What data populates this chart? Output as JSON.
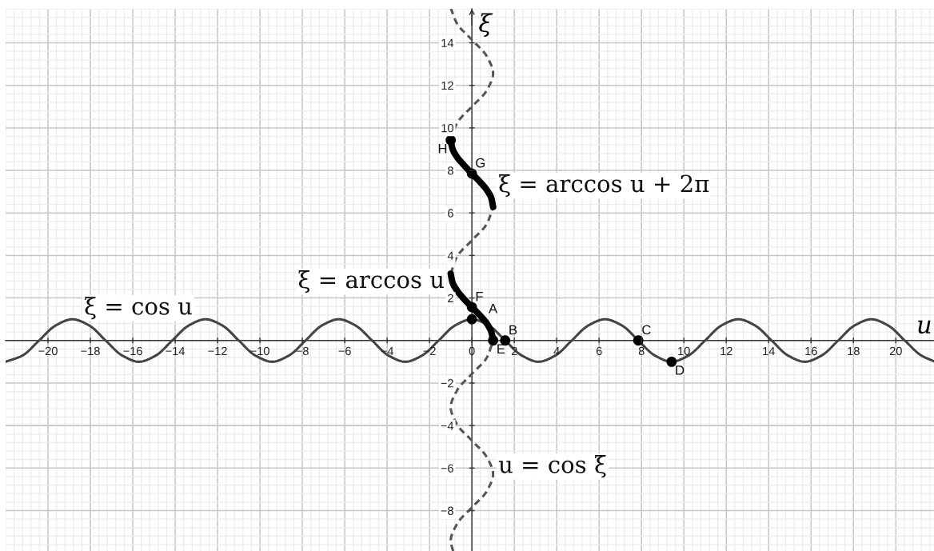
{
  "chart_data": {
    "type": "line",
    "xlabel": "u",
    "ylabel": "ξ",
    "xlim": [
      -22,
      21.8
    ],
    "ylim": [
      -9.9,
      15.6
    ],
    "xticks": [
      {
        "value": -20,
        "label": "−20"
      },
      {
        "value": -18,
        "label": "−18"
      },
      {
        "value": -16,
        "label": "−16"
      },
      {
        "value": -14,
        "label": "−14"
      },
      {
        "value": -12,
        "label": "−12"
      },
      {
        "value": -10,
        "label": "−10"
      },
      {
        "value": -8,
        "label": "−8"
      },
      {
        "value": -6,
        "label": "−6"
      },
      {
        "value": -4,
        "label": "−4"
      },
      {
        "value": -2,
        "label": "−2"
      },
      {
        "value": 0,
        "label": "0"
      },
      2,
      4,
      6,
      8,
      10,
      12,
      14,
      16,
      18,
      20
    ],
    "yticks": [
      {
        "value": -8,
        "label": "−8"
      },
      {
        "value": -6,
        "label": "−6"
      },
      {
        "value": -4,
        "label": "−4"
      },
      {
        "value": -2,
        "label": "−2"
      },
      2,
      4,
      6,
      8,
      10,
      12,
      14
    ],
    "grid": true,
    "series": [
      {
        "color": "#444444",
        "x": [
          -21.99,
          -21.21,
          -20.42,
          -19.63,
          -18.85,
          -18.06,
          -17.28,
          -16.49,
          -15.71,
          -14.92,
          -14.14,
          -13.35,
          -12.57,
          -11.78,
          -11.0,
          -10.21,
          -9.42,
          -8.64,
          -7.85,
          -7.07,
          -6.28,
          -5.5,
          -4.71,
          -3.93,
          -3.14,
          -2.36,
          -1.57,
          -0.79,
          0,
          0.79,
          1.57,
          2.36,
          3.14,
          3.93,
          4.71,
          5.5,
          6.28,
          7.07,
          7.85,
          8.64,
          9.42,
          10.21,
          11.0,
          11.78,
          12.57,
          13.35,
          14.14,
          14.92,
          15.71,
          16.49,
          17.28,
          18.06,
          18.85,
          19.63,
          20.42,
          21.21,
          21.8
        ],
        "values": [
          -1,
          -0.71,
          0,
          0.71,
          1,
          0.71,
          0,
          -0.71,
          -1,
          -0.71,
          0,
          0.71,
          1,
          0.71,
          0,
          -0.71,
          -1,
          -0.71,
          0,
          0.71,
          1,
          0.71,
          0,
          -0.71,
          -1,
          -0.71,
          0,
          0.71,
          1,
          0.71,
          0,
          -0.71,
          -1,
          -0.71,
          0,
          0.71,
          1,
          0.71,
          0,
          -0.71,
          -1,
          -0.71,
          0,
          0.71,
          1,
          0.71,
          0,
          -0.71,
          -1,
          -0.71,
          0,
          0.71,
          1,
          0.71,
          0,
          -0.71,
          -0.98
        ]
      },
      {
        "color": "#555555",
        "line_style": "dashed",
        "x": [
          -0.89,
          -1,
          -0.71,
          0,
          0.71,
          1,
          0.71,
          0,
          -0.71,
          -1,
          -0.71,
          0,
          0.71,
          1,
          null,
          -1,
          -0.71,
          0,
          0.71,
          1,
          null,
          -1,
          -0.71,
          0,
          0.71,
          1,
          0.71,
          0,
          -0.71,
          -0.99
        ],
        "values": [
          -9.9,
          -9.42,
          -8.64,
          -7.85,
          -7.07,
          -6.28,
          -5.5,
          -4.71,
          -3.93,
          -3.14,
          -2.36,
          -1.57,
          -0.79,
          0,
          null,
          3.14,
          3.93,
          4.71,
          5.5,
          6.28,
          null,
          9.42,
          10.21,
          11.0,
          11.78,
          12.57,
          13.35,
          14.14,
          14.92,
          15.6
        ]
      },
      {
        "color": "#000000",
        "x": [
          -1,
          -0.92,
          -0.71,
          -0.38,
          0,
          0.38,
          0.71,
          0.92,
          1
        ],
        "values": [
          3.14,
          2.75,
          2.36,
          1.96,
          1.57,
          1.18,
          0.79,
          0.39,
          0
        ]
      },
      {
        "color": "#000000",
        "x": [
          -1,
          -0.92,
          -0.71,
          -0.38,
          0,
          0.38,
          0.71,
          0.92,
          1
        ],
        "values": [
          9.42,
          9.03,
          8.64,
          8.25,
          7.85,
          7.46,
          7.07,
          6.68,
          6.28
        ]
      },
      {
        "type": "scatter",
        "color": "#000000",
        "marker": "circle",
        "x": [
          0,
          1.57,
          7.85,
          9.42,
          1,
          0,
          0,
          -1
        ],
        "values": [
          1,
          0,
          0,
          -1,
          0,
          1.57,
          7.85,
          9.42
        ]
      }
    ],
    "annotations": [
      {
        "text": "A",
        "x": 0,
        "y": 1
      },
      {
        "text": "B",
        "x": 1.57,
        "y": 0
      },
      {
        "text": "C",
        "x": 7.85,
        "y": 0
      },
      {
        "text": "D",
        "x": 9.42,
        "y": -1
      },
      {
        "text": "E",
        "x": 1,
        "y": 0
      },
      {
        "text": "F",
        "x": 0,
        "y": 1.57
      },
      {
        "text": "G",
        "x": 0,
        "y": 7.85
      },
      {
        "text": "H",
        "x": -1,
        "y": 9.42
      },
      "ξ = cos u",
      "ξ = arccos u",
      "ξ = arccos u + 2π",
      "u = cos ξ"
    ]
  }
}
